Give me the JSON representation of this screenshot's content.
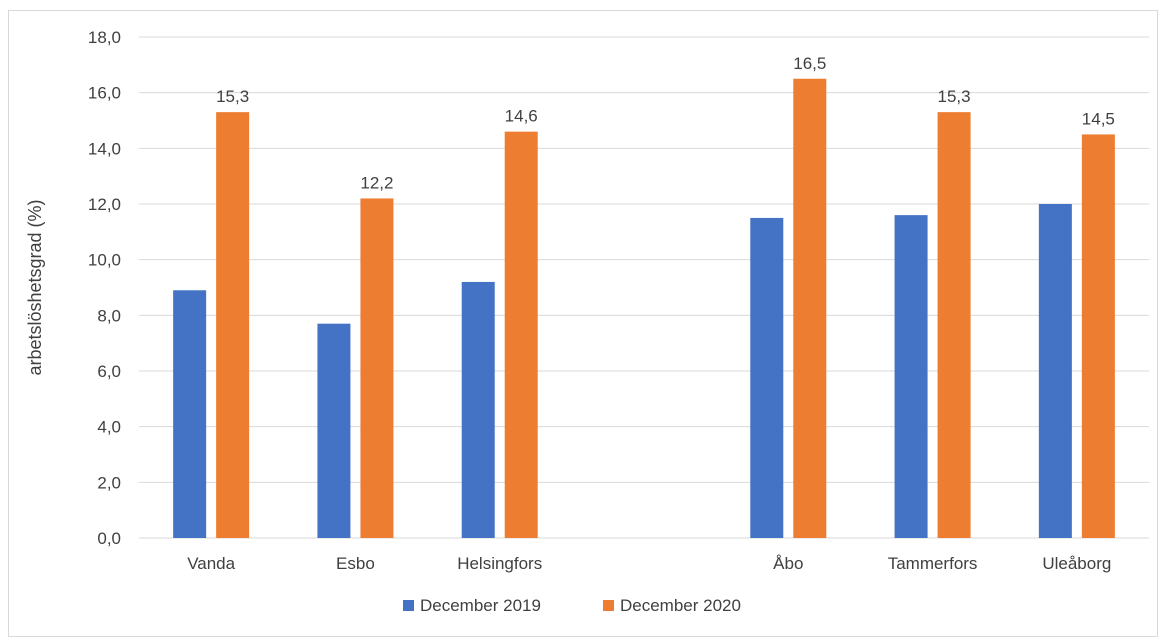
{
  "chart_data": {
    "type": "bar",
    "title": "",
    "xlabel": "",
    "ylabel": "arbetslöshetsgrad (%)",
    "ylim": [
      0,
      18
    ],
    "ytick_step": 2,
    "ytick_labels": [
      "0,0",
      "2,0",
      "4,0",
      "6,0",
      "8,0",
      "10,0",
      "12,0",
      "14,0",
      "16,0",
      "18,0"
    ],
    "grid": true,
    "legend_position": "bottom",
    "slots": [
      "Vanda",
      "Esbo",
      "Helsingfors",
      "",
      "Åbo",
      "Tammerfors",
      "Uleåborg"
    ],
    "categories": [
      "Vanda",
      "Esbo",
      "Helsingfors",
      "Åbo",
      "Tammerfors",
      "Uleåborg"
    ],
    "series": [
      {
        "name": "December 2019",
        "color": "#4472C4",
        "values": [
          8.9,
          7.7,
          9.2,
          11.5,
          11.6,
          12.0
        ],
        "show_labels": false
      },
      {
        "name": "December 2020",
        "color": "#ED7D31",
        "values": [
          15.3,
          12.2,
          14.6,
          16.5,
          15.3,
          14.5
        ],
        "data_labels": [
          "15,3",
          "12,2",
          "14,6",
          "16,5",
          "15,3",
          "14,5"
        ],
        "show_labels": true
      }
    ]
  }
}
